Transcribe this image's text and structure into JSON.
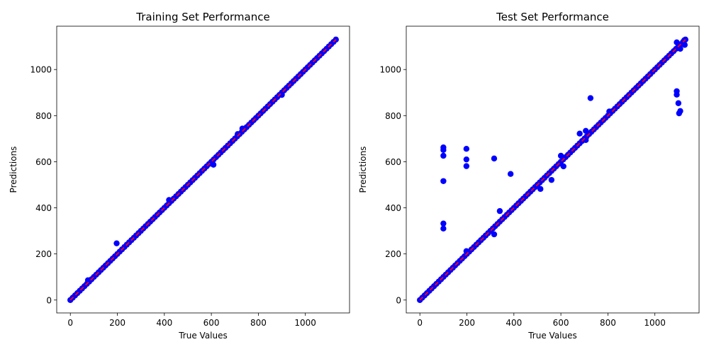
{
  "chart_data": [
    {
      "type": "scatter",
      "title": "Training Set Performance",
      "xlabel": "True Values",
      "ylabel": "Predictions",
      "xlim": [
        -58,
        1188
      ],
      "ylim": [
        -56,
        1188
      ],
      "xticks": [
        0,
        200,
        400,
        600,
        800,
        1000
      ],
      "yticks": [
        0,
        200,
        400,
        600,
        800,
        1000
      ],
      "grid": false,
      "legend": "none",
      "colors": {
        "points": "#0000ff",
        "ideal_line": "#ff0000"
      },
      "ideal_line": {
        "from": [
          0,
          0
        ],
        "to": [
          1130,
          1130
        ],
        "style": "dashed"
      },
      "diagonal_points": {
        "from": 0,
        "to": 1130,
        "step": 10
      },
      "outliers": [
        {
          "x": 197,
          "y": 246
        },
        {
          "x": 420,
          "y": 434
        },
        {
          "x": 609,
          "y": 587
        },
        {
          "x": 712,
          "y": 720
        },
        {
          "x": 732,
          "y": 744
        },
        {
          "x": 900,
          "y": 890
        },
        {
          "x": 75,
          "y": 86
        }
      ]
    },
    {
      "type": "scatter",
      "title": "Test Set Performance",
      "xlabel": "True Values",
      "ylabel": "Predictions",
      "xlim": [
        -58,
        1188
      ],
      "ylim": [
        -56,
        1188
      ],
      "xticks": [
        0,
        200,
        400,
        600,
        800,
        1000
      ],
      "yticks": [
        0,
        200,
        400,
        600,
        800,
        1000
      ],
      "grid": false,
      "legend": "none",
      "colors": {
        "points": "#0000ff",
        "ideal_line": "#ff0000"
      },
      "ideal_line": {
        "from": [
          0,
          0
        ],
        "to": [
          1130,
          1130
        ],
        "style": "dashed"
      },
      "diagonal_points": {
        "from": 0,
        "to": 1130,
        "step": 10
      },
      "outliers": [
        {
          "x": 100,
          "y": 662
        },
        {
          "x": 100,
          "y": 651
        },
        {
          "x": 100,
          "y": 626
        },
        {
          "x": 100,
          "y": 516
        },
        {
          "x": 100,
          "y": 332
        },
        {
          "x": 100,
          "y": 310
        },
        {
          "x": 198,
          "y": 656
        },
        {
          "x": 198,
          "y": 610
        },
        {
          "x": 198,
          "y": 581
        },
        {
          "x": 198,
          "y": 212
        },
        {
          "x": 316,
          "y": 614
        },
        {
          "x": 316,
          "y": 285
        },
        {
          "x": 340,
          "y": 386
        },
        {
          "x": 386,
          "y": 547
        },
        {
          "x": 513,
          "y": 482
        },
        {
          "x": 560,
          "y": 521
        },
        {
          "x": 600,
          "y": 626
        },
        {
          "x": 611,
          "y": 580
        },
        {
          "x": 680,
          "y": 722
        },
        {
          "x": 706,
          "y": 734
        },
        {
          "x": 706,
          "y": 694
        },
        {
          "x": 726,
          "y": 876
        },
        {
          "x": 806,
          "y": 818
        },
        {
          "x": 1093,
          "y": 1118
        },
        {
          "x": 1093,
          "y": 906
        },
        {
          "x": 1093,
          "y": 891
        },
        {
          "x": 1100,
          "y": 854
        },
        {
          "x": 1103,
          "y": 810
        },
        {
          "x": 1108,
          "y": 820
        },
        {
          "x": 1108,
          "y": 1090
        },
        {
          "x": 1125,
          "y": 1127
        },
        {
          "x": 1127,
          "y": 1107
        }
      ]
    }
  ]
}
